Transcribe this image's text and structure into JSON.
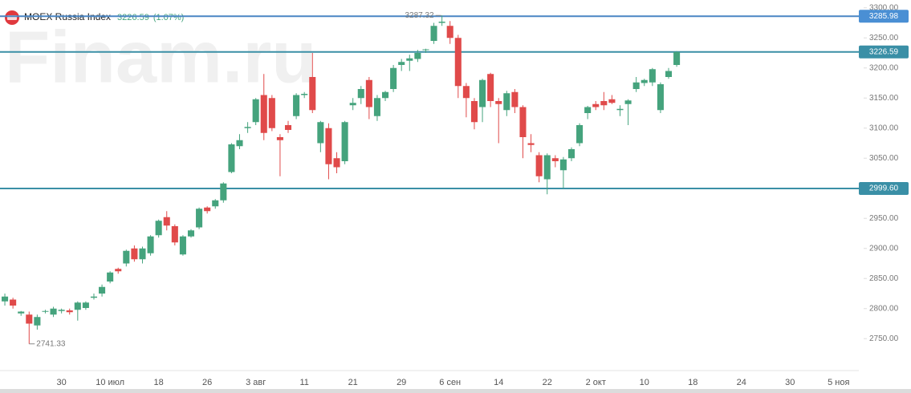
{
  "chart_data": {
    "type": "candlestick",
    "title": "MOEX Russia Index",
    "change_label": "(1.07%)",
    "watermark": "Finam.ru",
    "up_color": "#45a37d",
    "down_color": "#e04a4a",
    "categories": [
      null,
      null,
      null,
      null,
      null,
      null,
      null,
      "30",
      null,
      null,
      null,
      null,
      null,
      "10 июл",
      null,
      null,
      null,
      null,
      null,
      "18",
      null,
      null,
      null,
      null,
      null,
      "26",
      null,
      null,
      null,
      null,
      null,
      "3 авг",
      null,
      null,
      null,
      null,
      null,
      "11",
      null,
      null,
      null,
      null,
      null,
      "21",
      null,
      null,
      null,
      null,
      null,
      "29",
      null,
      null,
      null,
      null,
      null,
      "6 сен",
      null,
      null,
      null,
      null,
      null,
      "14",
      null,
      null,
      null,
      null,
      null,
      "22",
      null,
      null,
      null,
      null,
      null,
      "2 окт",
      null,
      null,
      null,
      null,
      null,
      "10",
      null,
      null,
      null,
      null,
      null,
      "18",
      null,
      null,
      null,
      null,
      null,
      "24",
      null,
      null,
      null,
      null,
      null,
      "30",
      null,
      null,
      null,
      null,
      null,
      "5 ноя",
      null,
      null
    ],
    "open": [
      2812,
      2815,
      2792,
      2790,
      2772,
      2795,
      2790,
      2796,
      2797,
      2798,
      2801,
      2818,
      2825,
      2845,
      2866,
      2875,
      2900,
      2882,
      2892,
      2922,
      2952,
      2937,
      2890,
      2920,
      2935,
      2968,
      2970,
      2980,
      3027,
      3070,
      3100,
      3110,
      3155,
      3150,
      3085,
      3105,
      3120,
      3155,
      3185,
      3075,
      3100,
      3050,
      3045,
      3138,
      3150,
      3180,
      3120,
      3150,
      3165,
      3205,
      3212,
      3215,
      3230,
      3245,
      3275,
      3270,
      3250,
      3170,
      3145,
      3135,
      3190,
      3145,
      3130,
      3160,
      3135,
      3075,
      3055,
      3015,
      3050,
      3030,
      3050,
      3075,
      3125,
      3140,
      3145,
      3148,
      3130,
      3140,
      3165,
      3175,
      3176,
      3130,
      3185,
      3205,
      null,
      null,
      null,
      null,
      null,
      null,
      null,
      null,
      null,
      null,
      null,
      null,
      null,
      null,
      null,
      null,
      null,
      null,
      null,
      null,
      null,
      null
    ],
    "high": [
      2825,
      2818,
      2796,
      2795,
      2790,
      2798,
      2803,
      2800,
      2800,
      2812,
      2812,
      2825,
      2840,
      2862,
      2868,
      2898,
      2905,
      2903,
      2922,
      2948,
      2962,
      2940,
      2922,
      2932,
      2968,
      2970,
      2982,
      3010,
      3075,
      3090,
      3110,
      3150,
      3190,
      3155,
      3090,
      3112,
      3158,
      3160,
      3225,
      3112,
      3108,
      3060,
      3112,
      3150,
      3170,
      3185,
      3155,
      3162,
      3205,
      3215,
      3222,
      3230,
      3232,
      3275,
      3287.32,
      3278,
      3255,
      3175,
      3150,
      3182,
      3192,
      3150,
      3162,
      3165,
      3138,
      3090,
      3060,
      3058,
      3055,
      3052,
      3068,
      3108,
      3137,
      3145,
      3160,
      3155,
      3138,
      3148,
      3185,
      3182,
      3200,
      3176,
      3200,
      3228,
      null,
      null,
      null,
      null,
      null,
      null,
      null,
      null,
      null,
      null,
      null,
      null,
      null,
      null,
      null,
      null,
      null,
      null,
      null,
      null,
      null,
      null
    ],
    "low": [
      2805,
      2800,
      2788,
      2741.33,
      2765,
      2792,
      2786,
      2792,
      2790,
      2780,
      2798,
      2815,
      2820,
      2842,
      2858,
      2870,
      2878,
      2875,
      2888,
      2918,
      2930,
      2905,
      2888,
      2918,
      2932,
      2958,
      2966,
      2976,
      3025,
      3065,
      3092,
      3105,
      3080,
      3095,
      3020,
      3092,
      3115,
      3150,
      3125,
      3060,
      3015,
      3025,
      3040,
      3130,
      3140,
      3115,
      3112,
      3145,
      3160,
      3195,
      3195,
      3210,
      3225,
      3240,
      3270,
      3240,
      3150,
      3118,
      3098,
      3110,
      3135,
      3075,
      3120,
      3125,
      3050,
      3060,
      3010,
      2990,
      3035,
      3000,
      3045,
      3070,
      3115,
      3130,
      3130,
      3140,
      3120,
      3105,
      3160,
      3170,
      3170,
      3125,
      3182,
      3202,
      null,
      null,
      null,
      null,
      null,
      null,
      null,
      null,
      null,
      null,
      null,
      null,
      null,
      null,
      null,
      null,
      null,
      null,
      null,
      null,
      null,
      null
    ],
    "close": [
      2820,
      2805,
      2795,
      2775,
      2786,
      2796,
      2800,
      2798,
      2794,
      2810,
      2810,
      2820,
      2836,
      2860,
      2862,
      2896,
      2882,
      2900,
      2920,
      2946,
      2938,
      2910,
      2920,
      2930,
      2966,
      2962,
      2980,
      3008,
      3073,
      3080,
      3102,
      3148,
      3092,
      3100,
      3080,
      3097,
      3155,
      3157,
      3130,
      3110,
      3040,
      3035,
      3110,
      3142,
      3165,
      3135,
      3150,
      3160,
      3200,
      3210,
      3216,
      3225,
      3231,
      3270,
      3277,
      3250,
      3170,
      3150,
      3110,
      3180,
      3145,
      3140,
      3158,
      3135,
      3085,
      3072,
      3020,
      3055,
      3045,
      3048,
      3065,
      3105,
      3135,
      3135,
      3138,
      3142,
      3132,
      3146,
      3176,
      3180,
      3198,
      3173,
      3195,
      3226.59,
      null,
      null,
      null,
      null,
      null,
      null,
      null,
      null,
      null,
      null,
      null,
      null,
      null,
      null,
      null,
      null,
      null,
      null,
      null,
      null,
      null,
      null
    ],
    "ylim": [
      2697,
      3313
    ],
    "yticks": [
      {
        "value": 2750,
        "label": "2750.00"
      },
      {
        "value": 2800,
        "label": "2800.00"
      },
      {
        "value": 2850,
        "label": "2850.00"
      },
      {
        "value": 2900,
        "label": "2900.00"
      },
      {
        "value": 2950,
        "label": "2950.00"
      },
      {
        "value": 3000,
        "label": "3000.00"
      },
      {
        "value": 3050,
        "label": "3050.00"
      },
      {
        "value": 3100,
        "label": "3100.00"
      },
      {
        "value": 3150,
        "label": "3150.00"
      },
      {
        "value": 3200,
        "label": "3200.00"
      },
      {
        "value": 3250,
        "label": "3250.00"
      },
      {
        "value": 3300,
        "label": "3300.00"
      }
    ],
    "levels": [
      {
        "value": 3285.98,
        "color": "#4a86c4"
      },
      {
        "value": 3226.59,
        "color": "#3a8fa6"
      },
      {
        "value": 2999.6,
        "label": "2999.60",
        "color": "#3a8fa6"
      }
    ]
  }
}
